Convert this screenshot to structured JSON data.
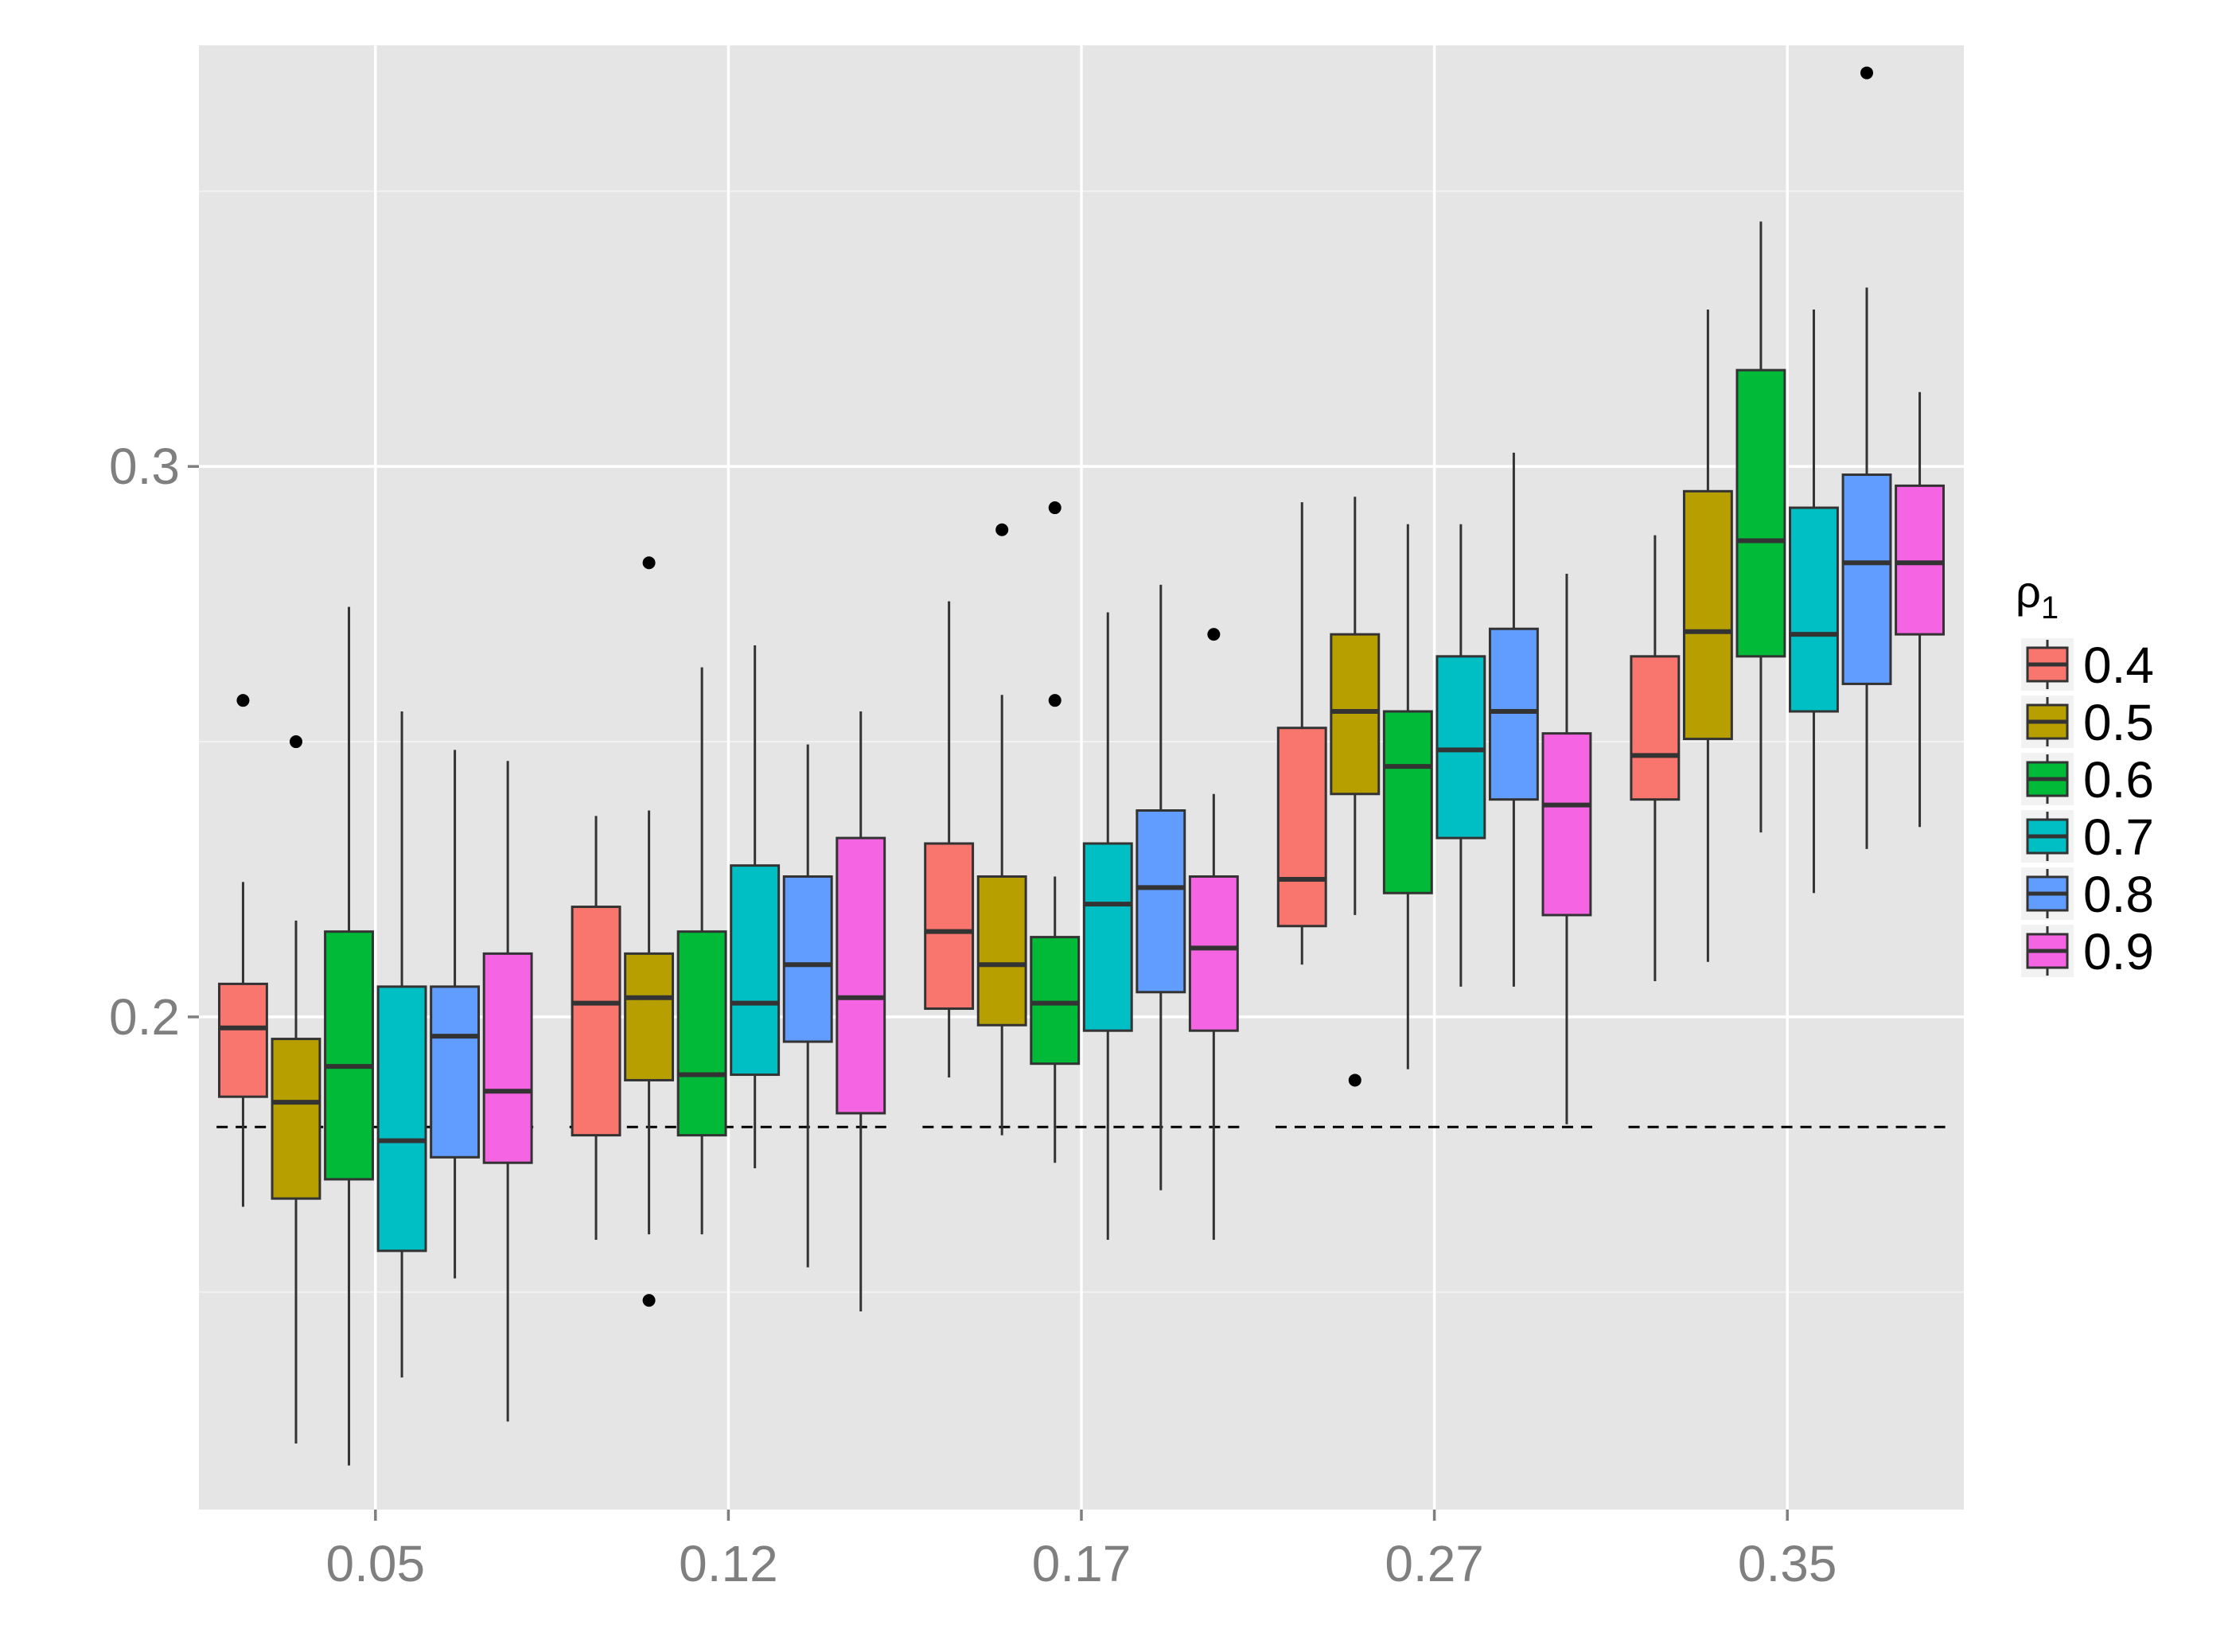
{
  "chart_data": {
    "type": "boxplot",
    "categories": [
      "0.05",
      "0.12",
      "0.17",
      "0.27",
      "0.35"
    ],
    "legend": {
      "title": "ρ",
      "title_subscript": "1",
      "placement": "right"
    },
    "y_ticks": [
      "0.2",
      "0.3"
    ],
    "y_tick_values": [
      0.2,
      0.3
    ],
    "ylim": [
      0.1105,
      0.3765
    ],
    "grid": true,
    "reference_line": {
      "value": 0.18,
      "style": "dashed"
    },
    "series": [
      {
        "name": "0.4",
        "color": "#F8766D",
        "boxes": [
          {
            "min": 0.1655,
            "q1": 0.1855,
            "median": 0.198,
            "q3": 0.206,
            "max": 0.2245,
            "outliers": [
              0.2575
            ]
          },
          {
            "min": 0.1595,
            "q1": 0.1785,
            "median": 0.2025,
            "q3": 0.22,
            "max": 0.2365,
            "outliers": []
          },
          {
            "min": 0.189,
            "q1": 0.2015,
            "median": 0.2155,
            "q3": 0.2315,
            "max": 0.2755,
            "outliers": []
          },
          {
            "min": 0.2095,
            "q1": 0.2165,
            "median": 0.225,
            "q3": 0.2525,
            "max": 0.2935,
            "outliers": []
          },
          {
            "min": 0.2065,
            "q1": 0.2395,
            "median": 0.2475,
            "q3": 0.2655,
            "max": 0.2875,
            "outliers": []
          }
        ]
      },
      {
        "name": "0.5",
        "color": "#B79F00",
        "boxes": [
          {
            "min": 0.1225,
            "q1": 0.167,
            "median": 0.1845,
            "q3": 0.196,
            "max": 0.2175,
            "outliers": [
              0.25
            ]
          },
          {
            "min": 0.1605,
            "q1": 0.1885,
            "median": 0.2035,
            "q3": 0.2115,
            "max": 0.2375,
            "outliers": [
              0.2825,
              0.1485
            ]
          },
          {
            "min": 0.1785,
            "q1": 0.1985,
            "median": 0.2095,
            "q3": 0.2255,
            "max": 0.2585,
            "outliers": [
              0.2885
            ]
          },
          {
            "min": 0.2185,
            "q1": 0.2405,
            "median": 0.2555,
            "q3": 0.2695,
            "max": 0.2945,
            "outliers": [
              0.1885
            ]
          },
          {
            "min": 0.21,
            "q1": 0.2505,
            "median": 0.27,
            "q3": 0.2955,
            "max": 0.3285,
            "outliers": []
          }
        ]
      },
      {
        "name": "0.6",
        "color": "#00BA38",
        "boxes": [
          {
            "min": 0.1185,
            "q1": 0.1705,
            "median": 0.191,
            "q3": 0.2155,
            "max": 0.2745,
            "outliers": []
          },
          {
            "min": 0.1605,
            "q1": 0.1785,
            "median": 0.1895,
            "q3": 0.2155,
            "max": 0.2635,
            "outliers": []
          },
          {
            "min": 0.1735,
            "q1": 0.1915,
            "median": 0.2025,
            "q3": 0.2145,
            "max": 0.2255,
            "outliers": [
              0.2925,
              0.2575
            ]
          },
          {
            "min": 0.1905,
            "q1": 0.2225,
            "median": 0.2455,
            "q3": 0.2555,
            "max": 0.2895,
            "outliers": []
          },
          {
            "min": 0.2335,
            "q1": 0.2655,
            "median": 0.2865,
            "q3": 0.3175,
            "max": 0.3445,
            "outliers": []
          }
        ]
      },
      {
        "name": "0.7",
        "color": "#00BFC4",
        "boxes": [
          {
            "min": 0.1345,
            "q1": 0.1575,
            "median": 0.1775,
            "q3": 0.2055,
            "max": 0.2555,
            "outliers": []
          },
          {
            "min": 0.1725,
            "q1": 0.1895,
            "median": 0.2025,
            "q3": 0.2275,
            "max": 0.2675,
            "outliers": []
          },
          {
            "min": 0.1595,
            "q1": 0.1975,
            "median": 0.2205,
            "q3": 0.2315,
            "max": 0.2735,
            "outliers": []
          },
          {
            "min": 0.2055,
            "q1": 0.2325,
            "median": 0.2485,
            "q3": 0.2655,
            "max": 0.2895,
            "outliers": []
          },
          {
            "min": 0.2225,
            "q1": 0.2555,
            "median": 0.2695,
            "q3": 0.2925,
            "max": 0.3285,
            "outliers": []
          }
        ]
      },
      {
        "name": "0.8",
        "color": "#619CFF",
        "boxes": [
          {
            "min": 0.1525,
            "q1": 0.1745,
            "median": 0.1965,
            "q3": 0.2055,
            "max": 0.2485,
            "outliers": []
          },
          {
            "min": 0.1545,
            "q1": 0.1955,
            "median": 0.2095,
            "q3": 0.2255,
            "max": 0.2495,
            "outliers": []
          },
          {
            "min": 0.1685,
            "q1": 0.2045,
            "median": 0.2235,
            "q3": 0.2375,
            "max": 0.2785,
            "outliers": []
          },
          {
            "min": 0.2055,
            "q1": 0.2395,
            "median": 0.2555,
            "q3": 0.2705,
            "max": 0.3025,
            "outliers": []
          },
          {
            "min": 0.2305,
            "q1": 0.2605,
            "median": 0.2825,
            "q3": 0.2985,
            "max": 0.3325,
            "outliers": [
              0.3715
            ]
          }
        ]
      },
      {
        "name": "0.9",
        "color": "#F564E3",
        "boxes": [
          {
            "min": 0.1265,
            "q1": 0.1735,
            "median": 0.1865,
            "q3": 0.2115,
            "max": 0.2465,
            "outliers": []
          },
          {
            "min": 0.1465,
            "q1": 0.1825,
            "median": 0.2035,
            "q3": 0.2325,
            "max": 0.2555,
            "outliers": []
          },
          {
            "min": 0.1595,
            "q1": 0.1975,
            "median": 0.2125,
            "q3": 0.2255,
            "max": 0.2405,
            "outliers": [
              0.2695
            ]
          },
          {
            "min": 0.1805,
            "q1": 0.2185,
            "median": 0.2385,
            "q3": 0.2515,
            "max": 0.2805,
            "outliers": []
          },
          {
            "min": 0.2345,
            "q1": 0.2695,
            "median": 0.2825,
            "q3": 0.2965,
            "max": 0.3135,
            "outliers": []
          }
        ]
      }
    ]
  }
}
